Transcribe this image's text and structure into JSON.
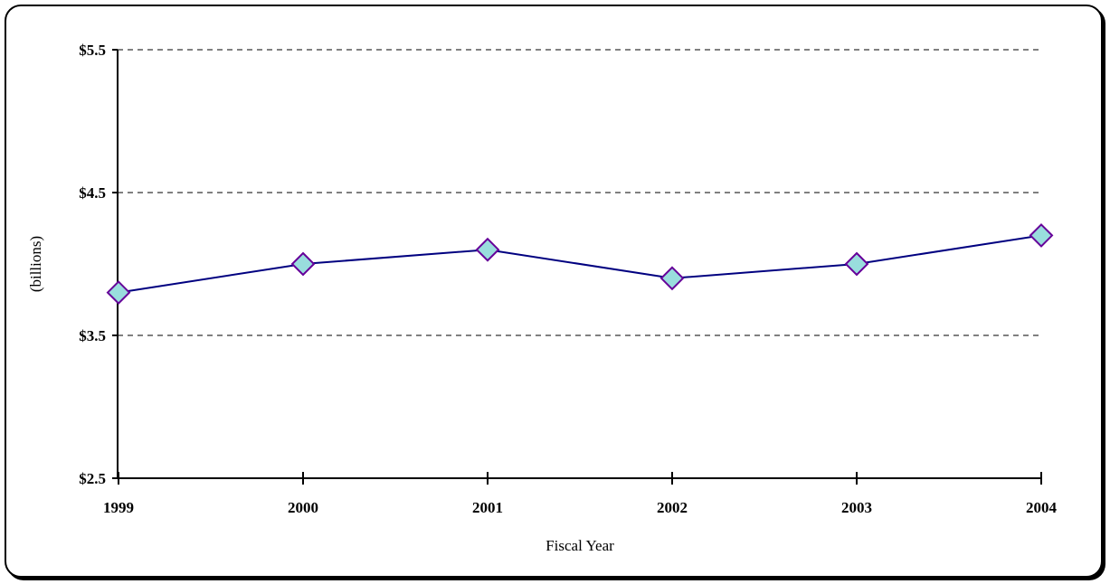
{
  "chart_data": {
    "type": "line",
    "title": "",
    "xlabel": "Fiscal Year",
    "ylabel": "(billions)",
    "categories": [
      "1999",
      "2000",
      "2001",
      "2002",
      "2003",
      "2004"
    ],
    "series": [
      {
        "values": [
          3.8,
          4.0,
          4.1,
          3.9,
          4.0,
          4.2
        ]
      }
    ],
    "ylim": [
      2.5,
      5.5
    ],
    "y_ticks": [
      2.5,
      3.5,
      4.5,
      5.5
    ],
    "y_tick_labels": [
      "$2.5",
      "$3.5",
      "$4.5",
      "$5.5"
    ],
    "grid": "horizontal-dashed",
    "legend": "none",
    "colors": {
      "line": "#000080",
      "marker_fill": "#99dddd",
      "marker_stroke": "#660099",
      "grid": "#000000",
      "axis": "#000000"
    }
  }
}
